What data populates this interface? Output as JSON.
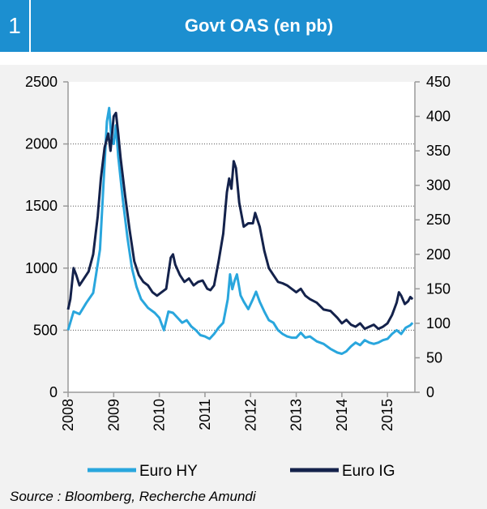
{
  "header": {
    "number": "1",
    "title": "Govt OAS (en pb)"
  },
  "source": "Source : Bloomberg, Recherche Amundi",
  "colors": {
    "header": "#1c8fd0",
    "euro_hy": "#29a6dd",
    "euro_ig": "#14224b",
    "panel": "#f2f2f2"
  },
  "chart_data": {
    "type": "line",
    "title": "Govt OAS (en pb)",
    "x_ticks": [
      "2008",
      "2009",
      "2010",
      "2011",
      "2012",
      "2013",
      "2014",
      "2015"
    ],
    "xlim": [
      2008.0,
      2015.6
    ],
    "y_left": {
      "lim": [
        0,
        2500
      ],
      "ticks": [
        "0",
        "500",
        "1000",
        "1500",
        "2000",
        "2500"
      ]
    },
    "y_right": {
      "lim": [
        0,
        450
      ],
      "ticks": [
        "0",
        "50",
        "100",
        "150",
        "200",
        "250",
        "300",
        "350",
        "400",
        "450"
      ]
    },
    "grid": "horizontal dotted",
    "legend": "bottom",
    "series": [
      {
        "name": "Euro HY",
        "axis": "left",
        "color": "#29a6dd",
        "points": [
          [
            2008.0,
            500
          ],
          [
            2008.12,
            650
          ],
          [
            2008.25,
            630
          ],
          [
            2008.4,
            720
          ],
          [
            2008.55,
            800
          ],
          [
            2008.7,
            1150
          ],
          [
            2008.78,
            1700
          ],
          [
            2008.85,
            2180
          ],
          [
            2008.9,
            2290
          ],
          [
            2008.95,
            2050
          ],
          [
            2009.0,
            2000
          ],
          [
            2009.05,
            2150
          ],
          [
            2009.1,
            1900
          ],
          [
            2009.2,
            1550
          ],
          [
            2009.3,
            1250
          ],
          [
            2009.4,
            1000
          ],
          [
            2009.5,
            850
          ],
          [
            2009.6,
            750
          ],
          [
            2009.75,
            680
          ],
          [
            2009.9,
            640
          ],
          [
            2010.0,
            600
          ],
          [
            2010.1,
            500
          ],
          [
            2010.2,
            650
          ],
          [
            2010.3,
            640
          ],
          [
            2010.4,
            600
          ],
          [
            2010.5,
            560
          ],
          [
            2010.6,
            580
          ],
          [
            2010.7,
            530
          ],
          [
            2010.8,
            500
          ],
          [
            2010.9,
            460
          ],
          [
            2011.0,
            450
          ],
          [
            2011.1,
            430
          ],
          [
            2011.2,
            470
          ],
          [
            2011.3,
            520
          ],
          [
            2011.4,
            560
          ],
          [
            2011.5,
            750
          ],
          [
            2011.55,
            950
          ],
          [
            2011.6,
            830
          ],
          [
            2011.65,
            900
          ],
          [
            2011.7,
            950
          ],
          [
            2011.78,
            780
          ],
          [
            2011.85,
            730
          ],
          [
            2011.95,
            670
          ],
          [
            2012.05,
            750
          ],
          [
            2012.12,
            810
          ],
          [
            2012.2,
            730
          ],
          [
            2012.3,
            650
          ],
          [
            2012.4,
            580
          ],
          [
            2012.5,
            560
          ],
          [
            2012.6,
            500
          ],
          [
            2012.7,
            470
          ],
          [
            2012.8,
            450
          ],
          [
            2012.9,
            440
          ],
          [
            2013.0,
            440
          ],
          [
            2013.1,
            480
          ],
          [
            2013.2,
            440
          ],
          [
            2013.3,
            450
          ],
          [
            2013.45,
            410
          ],
          [
            2013.6,
            390
          ],
          [
            2013.75,
            350
          ],
          [
            2013.9,
            320
          ],
          [
            2014.0,
            310
          ],
          [
            2014.1,
            330
          ],
          [
            2014.2,
            370
          ],
          [
            2014.3,
            400
          ],
          [
            2014.4,
            380
          ],
          [
            2014.5,
            420
          ],
          [
            2014.6,
            400
          ],
          [
            2014.7,
            390
          ],
          [
            2014.8,
            400
          ],
          [
            2014.9,
            420
          ],
          [
            2015.0,
            430
          ],
          [
            2015.1,
            470
          ],
          [
            2015.2,
            500
          ],
          [
            2015.3,
            470
          ],
          [
            2015.4,
            520
          ],
          [
            2015.5,
            540
          ],
          [
            2015.55,
            560
          ]
        ]
      },
      {
        "name": "Euro IG",
        "axis": "right",
        "color": "#14224b",
        "points": [
          [
            2008.0,
            120
          ],
          [
            2008.05,
            135
          ],
          [
            2008.12,
            180
          ],
          [
            2008.18,
            170
          ],
          [
            2008.25,
            155
          ],
          [
            2008.35,
            165
          ],
          [
            2008.45,
            175
          ],
          [
            2008.55,
            200
          ],
          [
            2008.65,
            255
          ],
          [
            2008.72,
            310
          ],
          [
            2008.8,
            355
          ],
          [
            2008.88,
            375
          ],
          [
            2008.93,
            350
          ],
          [
            2009.0,
            400
          ],
          [
            2009.05,
            405
          ],
          [
            2009.1,
            375
          ],
          [
            2009.15,
            340
          ],
          [
            2009.25,
            285
          ],
          [
            2009.35,
            235
          ],
          [
            2009.45,
            190
          ],
          [
            2009.55,
            170
          ],
          [
            2009.65,
            160
          ],
          [
            2009.75,
            155
          ],
          [
            2009.85,
            145
          ],
          [
            2009.95,
            140
          ],
          [
            2010.05,
            145
          ],
          [
            2010.15,
            150
          ],
          [
            2010.25,
            195
          ],
          [
            2010.3,
            200
          ],
          [
            2010.35,
            185
          ],
          [
            2010.45,
            170
          ],
          [
            2010.55,
            160
          ],
          [
            2010.65,
            165
          ],
          [
            2010.75,
            155
          ],
          [
            2010.85,
            160
          ],
          [
            2010.95,
            162
          ],
          [
            2011.05,
            150
          ],
          [
            2011.12,
            148
          ],
          [
            2011.2,
            155
          ],
          [
            2011.3,
            190
          ],
          [
            2011.4,
            230
          ],
          [
            2011.48,
            290
          ],
          [
            2011.53,
            310
          ],
          [
            2011.58,
            295
          ],
          [
            2011.63,
            335
          ],
          [
            2011.68,
            325
          ],
          [
            2011.75,
            275
          ],
          [
            2011.85,
            240
          ],
          [
            2011.95,
            245
          ],
          [
            2012.05,
            245
          ],
          [
            2012.1,
            260
          ],
          [
            2012.2,
            240
          ],
          [
            2012.3,
            205
          ],
          [
            2012.4,
            180
          ],
          [
            2012.5,
            170
          ],
          [
            2012.6,
            160
          ],
          [
            2012.7,
            158
          ],
          [
            2012.8,
            155
          ],
          [
            2012.9,
            150
          ],
          [
            2013.0,
            145
          ],
          [
            2013.1,
            150
          ],
          [
            2013.2,
            140
          ],
          [
            2013.3,
            135
          ],
          [
            2013.45,
            130
          ],
          [
            2013.6,
            120
          ],
          [
            2013.75,
            118
          ],
          [
            2013.9,
            108
          ],
          [
            2014.0,
            100
          ],
          [
            2014.1,
            105
          ],
          [
            2014.2,
            98
          ],
          [
            2014.3,
            95
          ],
          [
            2014.4,
            100
          ],
          [
            2014.5,
            92
          ],
          [
            2014.6,
            95
          ],
          [
            2014.7,
            98
          ],
          [
            2014.8,
            92
          ],
          [
            2014.9,
            95
          ],
          [
            2015.0,
            100
          ],
          [
            2015.1,
            112
          ],
          [
            2015.2,
            130
          ],
          [
            2015.25,
            145
          ],
          [
            2015.3,
            140
          ],
          [
            2015.38,
            128
          ],
          [
            2015.45,
            132
          ],
          [
            2015.5,
            138
          ],
          [
            2015.55,
            135
          ]
        ]
      }
    ]
  }
}
